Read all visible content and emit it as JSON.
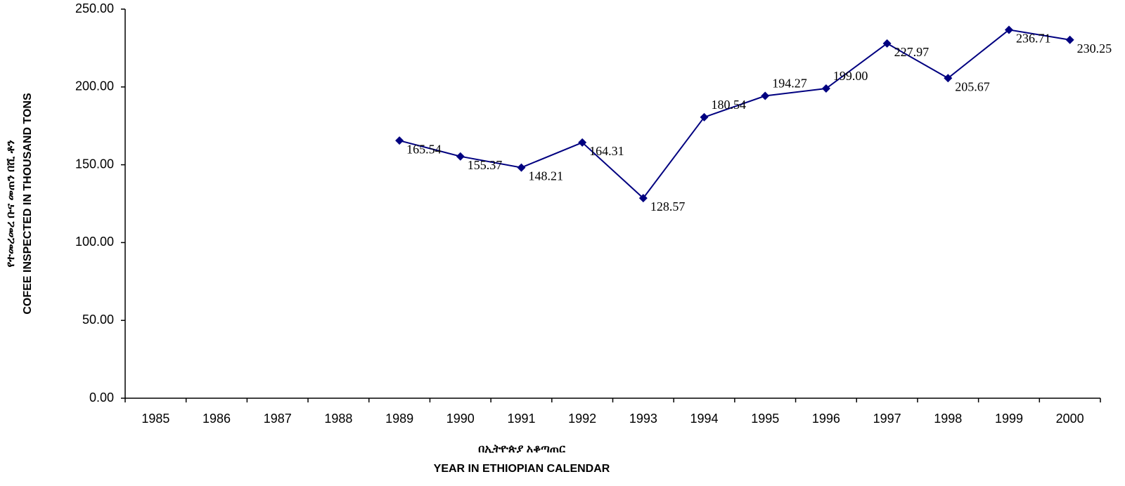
{
  "chart_data": {
    "type": "line",
    "y_label": [
      "የተመረመረ ቡና መጠን በሺ ቶን",
      "COFEE INSPECTED IN THOUSAND TONS"
    ],
    "x_label": [
      "በኢትዮጵያ አቆጣጠር",
      "YEAR IN ETHIOPIAN CALENDAR"
    ],
    "categories": [
      "1985",
      "1986",
      "1987",
      "1988",
      "1989",
      "1990",
      "1991",
      "1992",
      "1993",
      "1994",
      "1995",
      "1996",
      "1997",
      "1998",
      "1999",
      "2000"
    ],
    "series": [
      {
        "name": "Coffee inspected",
        "color": "#000080",
        "values": [
          null,
          null,
          null,
          null,
          165.54,
          155.37,
          148.21,
          164.31,
          128.57,
          180.54,
          194.27,
          199.0,
          227.97,
          205.67,
          236.71,
          230.25
        ],
        "value_labels": [
          null,
          null,
          null,
          null,
          "165.54",
          "155.37",
          "148.21",
          "164.31",
          "128.57",
          "180.54",
          "194.27",
          "199.00",
          "227.97",
          "205.67",
          "236.71",
          "230.25"
        ]
      }
    ],
    "ylim": [
      0,
      250
    ],
    "yticks": [
      {
        "value": 0,
        "label": "0.00"
      },
      {
        "value": 50,
        "label": "50.00"
      },
      {
        "value": 100,
        "label": "100.00"
      },
      {
        "value": 150,
        "label": "150.00"
      },
      {
        "value": 200,
        "label": "200.00"
      },
      {
        "value": 250,
        "label": "250.00"
      }
    ],
    "grid": false
  }
}
